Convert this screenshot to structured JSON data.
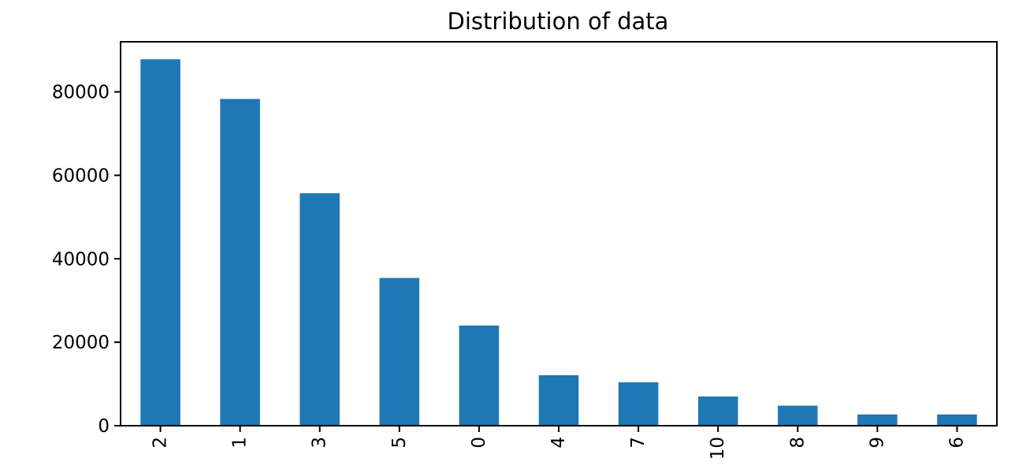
{
  "chart_data": {
    "type": "bar",
    "title": "Distribution of data",
    "xlabel": "",
    "ylabel": "",
    "categories": [
      "2",
      "1",
      "3",
      "5",
      "0",
      "4",
      "7",
      "10",
      "8",
      "9",
      "6"
    ],
    "values": [
      87800,
      78300,
      55700,
      35400,
      24000,
      12100,
      10400,
      7000,
      4800,
      2700,
      2700
    ],
    "ylim": [
      0,
      92000
    ],
    "yticks": [
      0,
      20000,
      40000,
      60000,
      80000
    ],
    "ytick_labels": [
      "0",
      "20000",
      "40000",
      "60000",
      "80000"
    ],
    "grid": false,
    "bar_color": "#1f77b4"
  }
}
